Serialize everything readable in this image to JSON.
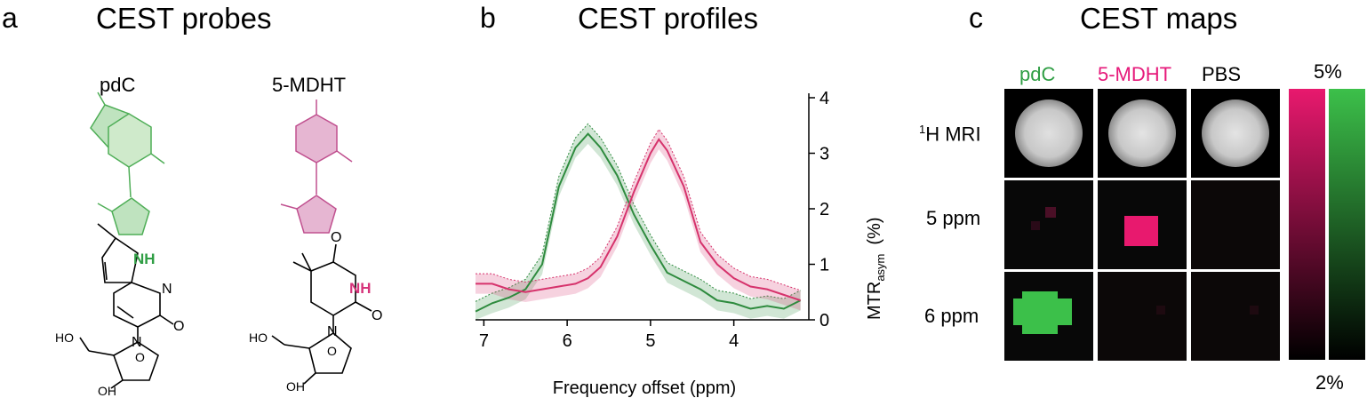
{
  "panels": {
    "a": {
      "letter": "a",
      "title": "CEST probes"
    },
    "b": {
      "letter": "b",
      "title": "CEST profiles"
    },
    "c": {
      "letter": "c",
      "title": "CEST maps"
    }
  },
  "probes": {
    "pdc": {
      "name": "pdC",
      "nh": "NH",
      "o": "O",
      "n1": "N",
      "n2": "N",
      "ho": "HO",
      "oh": "OH",
      "ring_o": "O",
      "color": "#2f9e44"
    },
    "mdht": {
      "name": "5-MDHT",
      "nh": "NH",
      "o1": "O",
      "o2": "O",
      "n": "N",
      "ho": "HO",
      "oh": "OH",
      "ring_o": "O",
      "color": "#d6337a"
    }
  },
  "chart_data": {
    "type": "line",
    "xlabel": "Frequency offset (ppm)",
    "ylabel_main": "MTR",
    "ylabel_sub": "asym",
    "ylabel_unit": "(%)",
    "xlim": [
      7.1,
      3.1
    ],
    "ylim": [
      0,
      4
    ],
    "xticks": [
      "7",
      "6",
      "5",
      "4"
    ],
    "xtick_values": [
      7,
      6,
      5,
      4
    ],
    "yticks": [
      "0",
      "1",
      "2",
      "3",
      "4"
    ],
    "ytick_values": [
      0,
      1,
      2,
      3,
      4
    ],
    "x": [
      7.1,
      6.9,
      6.7,
      6.5,
      6.3,
      6.1,
      5.9,
      5.75,
      5.6,
      5.4,
      5.2,
      5.0,
      4.9,
      4.8,
      4.6,
      4.4,
      4.2,
      4.0,
      3.8,
      3.6,
      3.4,
      3.2
    ],
    "series": [
      {
        "color": "#2e8b3e",
        "values": [
          0.15,
          0.3,
          0.4,
          0.55,
          1.0,
          2.4,
          3.1,
          3.35,
          3.1,
          2.6,
          1.9,
          1.35,
          1.1,
          0.85,
          0.7,
          0.55,
          0.35,
          0.3,
          0.2,
          0.25,
          0.2,
          0.35
        ]
      },
      {
        "color": "#d6336c",
        "values": [
          0.65,
          0.65,
          0.55,
          0.5,
          0.55,
          0.6,
          0.65,
          0.75,
          0.95,
          1.5,
          2.3,
          3.0,
          3.25,
          3.05,
          2.4,
          1.4,
          1.0,
          0.75,
          0.6,
          0.55,
          0.45,
          0.35
        ]
      }
    ]
  },
  "maps": {
    "columns": [
      "pdC",
      "5-MDHT",
      "PBS"
    ],
    "column_colors": [
      "#2f9e44",
      "#e6197a",
      "#000000"
    ],
    "rows": [
      {
        "sup": "1",
        "text": "H MRI"
      },
      {
        "sup": "",
        "text": "5 ppm"
      },
      {
        "sup": "",
        "text": "6 ppm"
      }
    ],
    "scale_max": "5%",
    "scale_min": "2%",
    "magenta": "#e8196e",
    "green": "#3cc04a"
  }
}
